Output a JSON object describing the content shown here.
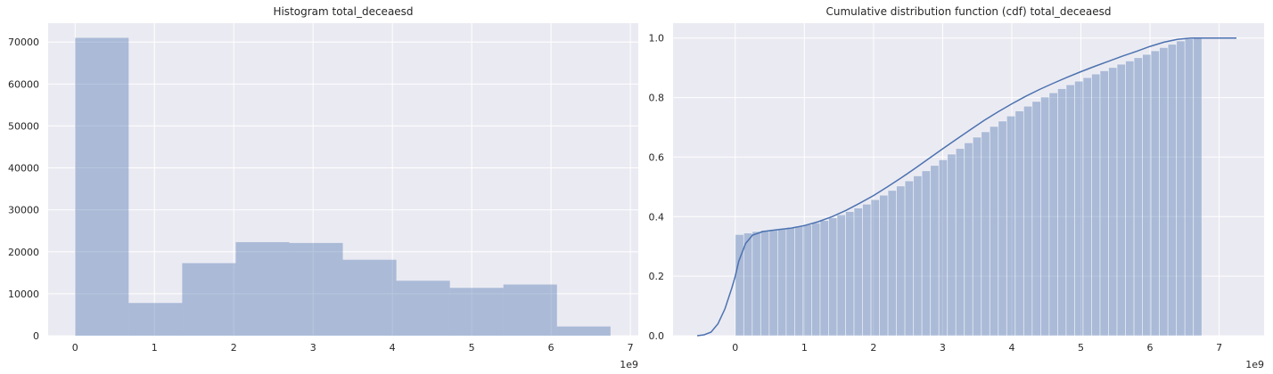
{
  "colors": {
    "axes_bg": "#eaeaf2",
    "grid": "#ffffff",
    "bar_fill": "#4c72b0",
    "line": "#4c72b0",
    "text": "#262626"
  },
  "chart_data": [
    {
      "type": "bar",
      "title": "Histogram total_deceaesd",
      "xlabel": "",
      "ylabel": "",
      "x_offset_label": "1e9",
      "xlim": [
        -0.34,
        7.1
      ],
      "ylim": [
        0,
        74500
      ],
      "xticks": [
        0,
        1,
        2,
        3,
        4,
        5,
        6,
        7
      ],
      "xtick_labels": [
        "0",
        "1",
        "2",
        "3",
        "4",
        "5",
        "6",
        "7"
      ],
      "yticks": [
        0,
        10000,
        20000,
        30000,
        40000,
        50000,
        60000,
        70000
      ],
      "ytick_labels": [
        "0",
        "10000",
        "20000",
        "30000",
        "40000",
        "50000",
        "60000",
        "70000"
      ],
      "grid": true,
      "bins": [
        {
          "x0": 0.0,
          "x1": 0.675,
          "value": 71000
        },
        {
          "x0": 0.675,
          "x1": 1.35,
          "value": 7800
        },
        {
          "x0": 1.35,
          "x1": 2.025,
          "value": 17300
        },
        {
          "x0": 2.025,
          "x1": 2.7,
          "value": 22300
        },
        {
          "x0": 2.7,
          "x1": 3.375,
          "value": 22100
        },
        {
          "x0": 3.375,
          "x1": 4.05,
          "value": 18100
        },
        {
          "x0": 4.05,
          "x1": 4.725,
          "value": 13100
        },
        {
          "x0": 4.725,
          "x1": 5.4,
          "value": 11400
        },
        {
          "x0": 5.4,
          "x1": 6.075,
          "value": 12200
        },
        {
          "x0": 6.075,
          "x1": 6.75,
          "value": 2200
        }
      ]
    },
    {
      "type": "area",
      "title": "Cumulative distribution function (cdf) total_deceaesd",
      "xlabel": "",
      "ylabel": "",
      "x_offset_label": "1e9",
      "xlim": [
        -0.9,
        7.65
      ],
      "ylim": [
        0,
        1.05
      ],
      "xticks": [
        0,
        1,
        2,
        3,
        4,
        5,
        6,
        7
      ],
      "xtick_labels": [
        "0",
        "1",
        "2",
        "3",
        "4",
        "5",
        "6",
        "7"
      ],
      "yticks": [
        0.0,
        0.2,
        0.4,
        0.6,
        0.8,
        1.0
      ],
      "ytick_labels": [
        "0.0",
        "0.2",
        "0.4",
        "0.6",
        "0.8",
        "1.0"
      ],
      "grid": true,
      "bars": {
        "x_start": 0.0,
        "x_end": 6.75,
        "values": [
          0.34,
          0.345,
          0.35,
          0.354,
          0.357,
          0.36,
          0.364,
          0.368,
          0.373,
          0.379,
          0.387,
          0.396,
          0.406,
          0.417,
          0.429,
          0.442,
          0.457,
          0.472,
          0.488,
          0.503,
          0.52,
          0.537,
          0.554,
          0.572,
          0.591,
          0.61,
          0.629,
          0.648,
          0.667,
          0.685,
          0.703,
          0.721,
          0.738,
          0.755,
          0.771,
          0.787,
          0.802,
          0.816,
          0.83,
          0.843,
          0.855,
          0.867,
          0.879,
          0.89,
          0.901,
          0.912,
          0.923,
          0.934,
          0.945,
          0.957,
          0.968,
          0.979,
          0.99,
          0.997,
          1.0
        ]
      },
      "cdf_line": {
        "x": [
          -0.55,
          -0.45,
          -0.35,
          -0.25,
          -0.15,
          -0.05,
          0.0,
          0.05,
          0.15,
          0.25,
          0.4,
          0.6,
          0.8,
          1.0,
          1.2,
          1.4,
          1.6,
          1.8,
          2.0,
          2.2,
          2.4,
          2.6,
          2.8,
          3.0,
          3.2,
          3.4,
          3.6,
          3.8,
          4.0,
          4.2,
          4.4,
          4.6,
          4.8,
          5.0,
          5.2,
          5.4,
          5.6,
          5.8,
          6.0,
          6.2,
          6.4,
          6.6,
          6.8,
          7.0,
          7.25
        ],
        "y": [
          0.0,
          0.003,
          0.012,
          0.04,
          0.09,
          0.16,
          0.2,
          0.25,
          0.31,
          0.338,
          0.35,
          0.356,
          0.361,
          0.37,
          0.383,
          0.4,
          0.421,
          0.445,
          0.471,
          0.5,
          0.53,
          0.562,
          0.595,
          0.628,
          0.66,
          0.692,
          0.723,
          0.752,
          0.779,
          0.804,
          0.827,
          0.848,
          0.868,
          0.887,
          0.905,
          0.922,
          0.939,
          0.955,
          0.972,
          0.986,
          0.996,
          1.0,
          1.0,
          1.0,
          1.0
        ]
      }
    }
  ]
}
